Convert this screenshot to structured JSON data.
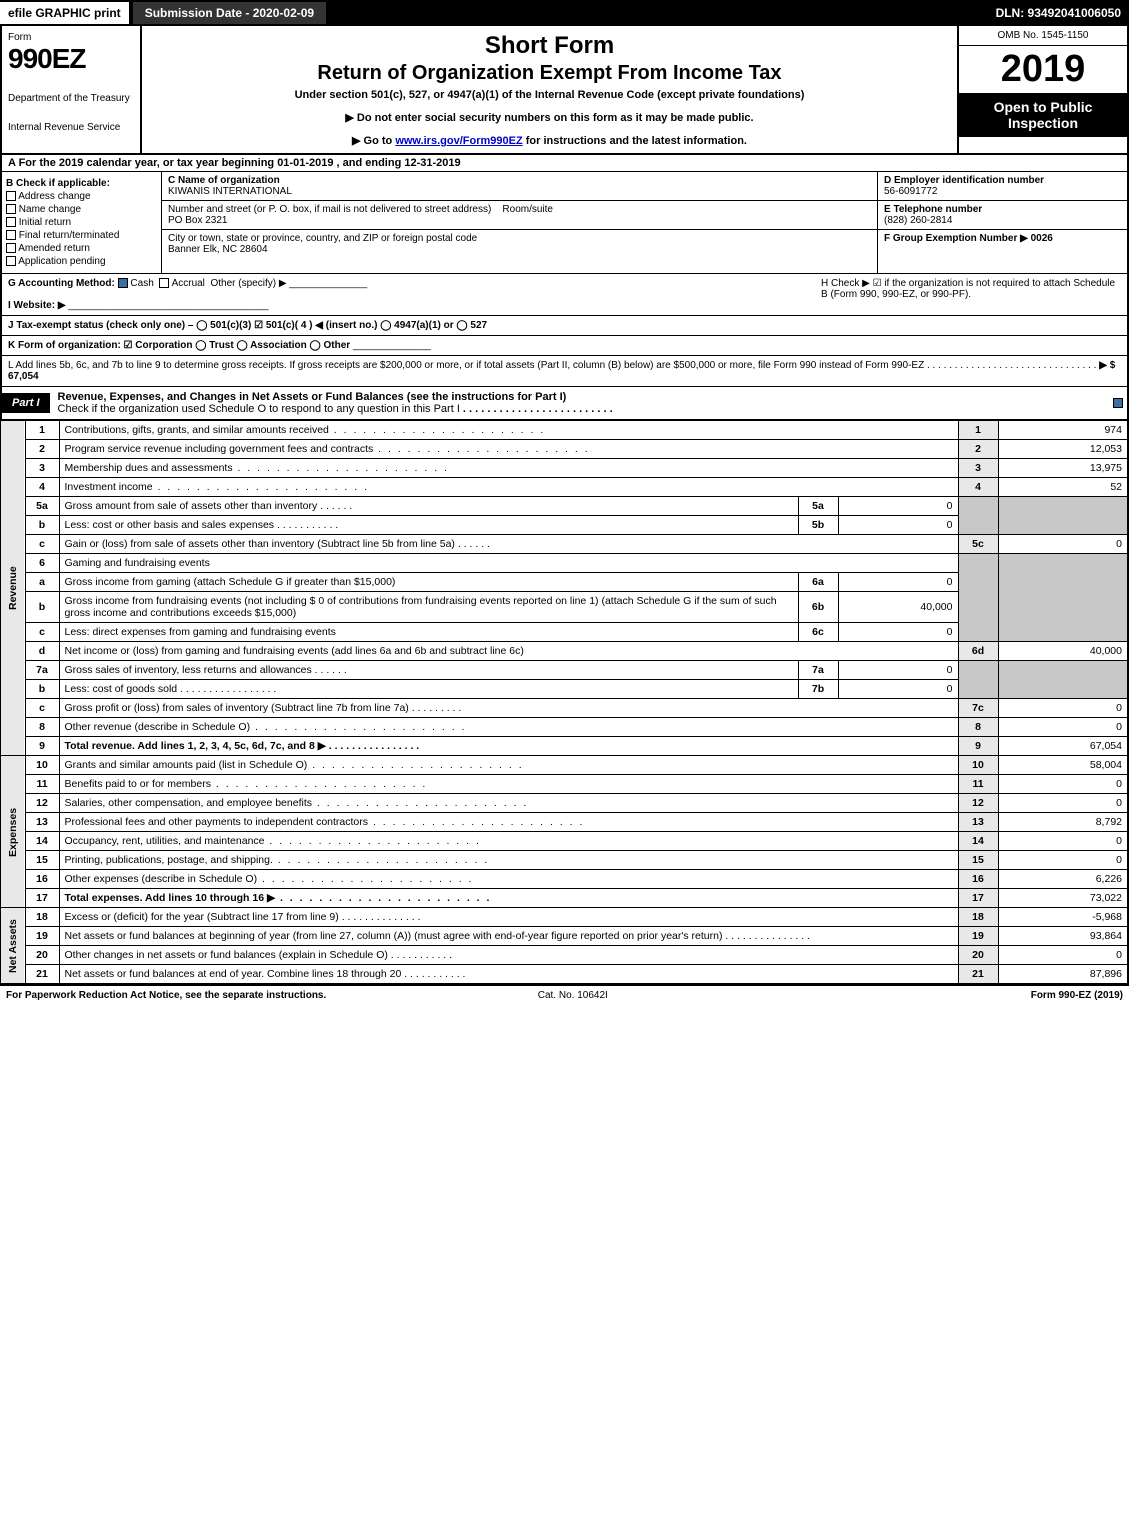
{
  "topbar": {
    "efile": "efile GRAPHIC print",
    "subdate": "Submission Date - 2020-02-09",
    "dln": "DLN: 93492041006050"
  },
  "header": {
    "form_word": "Form",
    "form_num": "990EZ",
    "dept1": "Department of the Treasury",
    "dept2": "Internal Revenue Service",
    "title1": "Short Form",
    "title2": "Return of Organization Exempt From Income Tax",
    "title3": "Under section 501(c), 527, or 4947(a)(1) of the Internal Revenue Code (except private foundations)",
    "title4": "▶ Do not enter social security numbers on this form as it may be made public.",
    "title5_pre": "▶ Go to ",
    "title5_link": "www.irs.gov/Form990EZ",
    "title5_post": " for instructions and the latest information.",
    "omb": "OMB No. 1545-1150",
    "year": "2019",
    "open": "Open to Public Inspection"
  },
  "taxyear": "A  For the 2019 calendar year, or tax year beginning 01-01-2019 , and ending 12-31-2019",
  "sectionB": {
    "label": "B  Check if applicable:",
    "items": [
      "Address change",
      "Name change",
      "Initial return",
      "Final return/terminated",
      "Amended return",
      "Application pending"
    ]
  },
  "sectionC": {
    "c_label": "C Name of organization",
    "c_name": "KIWANIS INTERNATIONAL",
    "addr_label": "Number and street (or P. O. box, if mail is not delivered to street address)",
    "room_label": "Room/suite",
    "addr": "PO Box 2321",
    "city_label": "City or town, state or province, country, and ZIP or foreign postal code",
    "city": "Banner Elk, NC  28604"
  },
  "sectionD": {
    "d_label": "D Employer identification number",
    "d_val": "56-6091772",
    "e_label": "E Telephone number",
    "e_val": "(828) 260-2814",
    "f_label": "F Group Exemption Number   ▶ 0026"
  },
  "g": {
    "label": "G Accounting Method:",
    "cash": "Cash",
    "accrual": "Accrual",
    "other": "Other (specify) ▶"
  },
  "h": {
    "text": "H  Check ▶ ☑ if the organization is not required to attach Schedule B (Form 990, 990-EZ, or 990-PF)."
  },
  "i": {
    "label": "I Website: ▶"
  },
  "j": {
    "label": "J Tax-exempt status (check only one) –  ◯ 501(c)(3)  ☑ 501(c)( 4 ) ◀ (insert no.)  ◯ 4947(a)(1) or  ◯ 527"
  },
  "k": {
    "label": "K Form of organization:   ☑ Corporation   ◯ Trust   ◯ Association   ◯ Other"
  },
  "l": {
    "text": "L Add lines 5b, 6c, and 7b to line 9 to determine gross receipts. If gross receipts are $200,000 or more, or if total assets (Part II, column (B) below) are $500,000 or more, file Form 990 instead of Form 990-EZ",
    "amt": "▶ $ 67,054"
  },
  "part1": {
    "label": "Part I",
    "title": "Revenue, Expenses, and Changes in Net Assets or Fund Balances (see the instructions for Part I)",
    "sub": "Check if the organization used Schedule O to respond to any question in this Part I"
  },
  "sides": {
    "revenue": "Revenue",
    "expenses": "Expenses",
    "netassets": "Net Assets"
  },
  "lines": {
    "l1": {
      "n": "1",
      "d": "Contributions, gifts, grants, and similar amounts received",
      "v": "974"
    },
    "l2": {
      "n": "2",
      "d": "Program service revenue including government fees and contracts",
      "v": "12,053"
    },
    "l3": {
      "n": "3",
      "d": "Membership dues and assessments",
      "v": "13,975"
    },
    "l4": {
      "n": "4",
      "d": "Investment income",
      "v": "52"
    },
    "l5a": {
      "n": "5a",
      "d": "Gross amount from sale of assets other than inventory",
      "sub": "5a",
      "sv": "0"
    },
    "l5b": {
      "n": "b",
      "d": "Less: cost or other basis and sales expenses",
      "sub": "5b",
      "sv": "0"
    },
    "l5c": {
      "n": "c",
      "d": "Gain or (loss) from sale of assets other than inventory (Subtract line 5b from line 5a)",
      "nc": "5c",
      "v": "0"
    },
    "l6": {
      "n": "6",
      "d": "Gaming and fundraising events"
    },
    "l6a": {
      "n": "a",
      "d": "Gross income from gaming (attach Schedule G if greater than $15,000)",
      "sub": "6a",
      "sv": "0"
    },
    "l6b": {
      "n": "b",
      "d": "Gross income from fundraising events (not including $ 0 of contributions from fundraising events reported on line 1) (attach Schedule G if the sum of such gross income and contributions exceeds $15,000)",
      "sub": "6b",
      "sv": "40,000"
    },
    "l6c": {
      "n": "c",
      "d": "Less: direct expenses from gaming and fundraising events",
      "sub": "6c",
      "sv": "0"
    },
    "l6d": {
      "n": "d",
      "d": "Net income or (loss) from gaming and fundraising events (add lines 6a and 6b and subtract line 6c)",
      "nc": "6d",
      "v": "40,000"
    },
    "l7a": {
      "n": "7a",
      "d": "Gross sales of inventory, less returns and allowances",
      "sub": "7a",
      "sv": "0"
    },
    "l7b": {
      "n": "b",
      "d": "Less: cost of goods sold",
      "sub": "7b",
      "sv": "0"
    },
    "l7c": {
      "n": "c",
      "d": "Gross profit or (loss) from sales of inventory (Subtract line 7b from line 7a)",
      "nc": "7c",
      "v": "0"
    },
    "l8": {
      "n": "8",
      "d": "Other revenue (describe in Schedule O)",
      "v": "0"
    },
    "l9": {
      "n": "9",
      "d": "Total revenue. Add lines 1, 2, 3, 4, 5c, 6d, 7c, and 8   ▶",
      "v": "67,054"
    },
    "l10": {
      "n": "10",
      "d": "Grants and similar amounts paid (list in Schedule O)",
      "v": "58,004"
    },
    "l11": {
      "n": "11",
      "d": "Benefits paid to or for members",
      "v": "0"
    },
    "l12": {
      "n": "12",
      "d": "Salaries, other compensation, and employee benefits",
      "v": "0"
    },
    "l13": {
      "n": "13",
      "d": "Professional fees and other payments to independent contractors",
      "v": "8,792"
    },
    "l14": {
      "n": "14",
      "d": "Occupancy, rent, utilities, and maintenance",
      "v": "0"
    },
    "l15": {
      "n": "15",
      "d": "Printing, publications, postage, and shipping.",
      "v": "0"
    },
    "l16": {
      "n": "16",
      "d": "Other expenses (describe in Schedule O)",
      "v": "6,226"
    },
    "l17": {
      "n": "17",
      "d": "Total expenses. Add lines 10 through 16   ▶",
      "v": "73,022"
    },
    "l18": {
      "n": "18",
      "d": "Excess or (deficit) for the year (Subtract line 17 from line 9)",
      "v": "-5,968"
    },
    "l19": {
      "n": "19",
      "d": "Net assets or fund balances at beginning of year (from line 27, column (A)) (must agree with end-of-year figure reported on prior year's return)",
      "v": "93,864"
    },
    "l20": {
      "n": "20",
      "d": "Other changes in net assets or fund balances (explain in Schedule O)",
      "v": "0"
    },
    "l21": {
      "n": "21",
      "d": "Net assets or fund balances at end of year. Combine lines 18 through 20",
      "v": "87,896"
    }
  },
  "footer": {
    "left": "For Paperwork Reduction Act Notice, see the separate instructions.",
    "mid": "Cat. No. 10642I",
    "right": "Form 990-EZ (2019)"
  }
}
